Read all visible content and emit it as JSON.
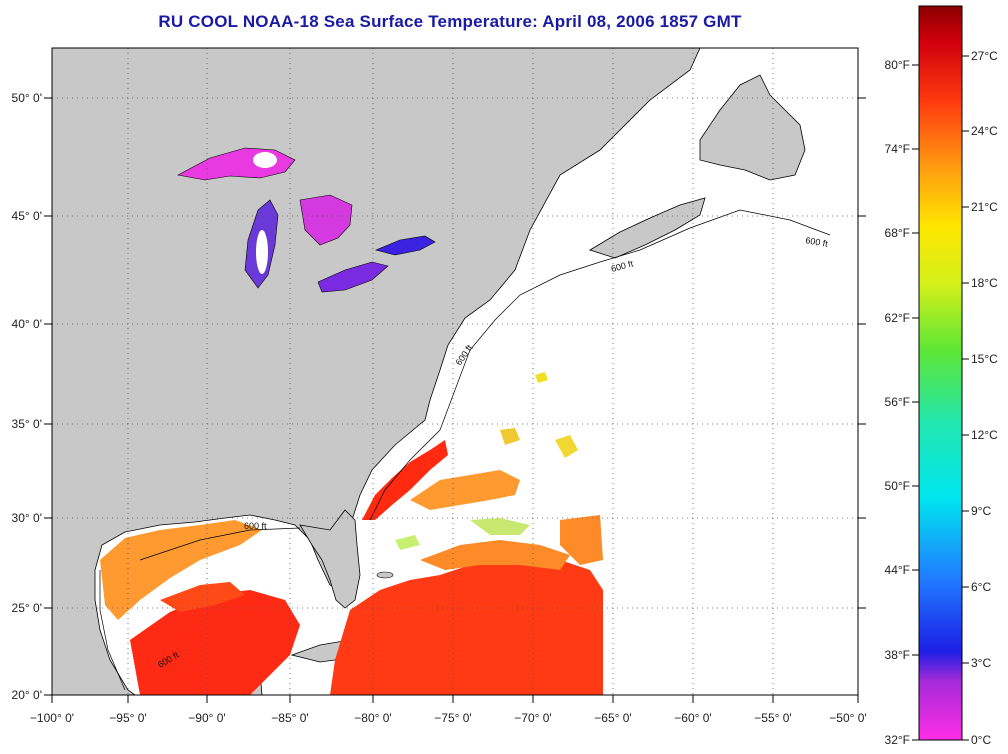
{
  "title": "RU COOL  NOAA-18  Sea Surface Temperature:  April 08, 2006 1857 GMT",
  "map": {
    "lon_labels": [
      "−100° 0'",
      "−95° 0'",
      "−90° 0'",
      "−85° 0'",
      "−80° 0'",
      "−75° 0'",
      "−70° 0'",
      "−65° 0'",
      "−60° 0'",
      "−55° 0'",
      "−50° 0'"
    ],
    "lat_labels": [
      "20° 0'",
      "25° 0'",
      "30° 0'",
      "35° 0'",
      "40° 0'",
      "45° 0'",
      "50° 0'"
    ],
    "contour_label": "600 ft",
    "land_color": "#c8c8c8",
    "water_color": "#ffffff"
  },
  "colorbar": {
    "fahrenheit_labels": [
      "32°F",
      "38°F",
      "44°F",
      "50°F",
      "56°F",
      "62°F",
      "68°F",
      "74°F",
      "80°F"
    ],
    "celsius_labels": [
      "0°C",
      "3°C",
      "6°C",
      "9°C",
      "12°C",
      "15°C",
      "18°C",
      "21°C",
      "24°C",
      "27°C"
    ]
  }
}
